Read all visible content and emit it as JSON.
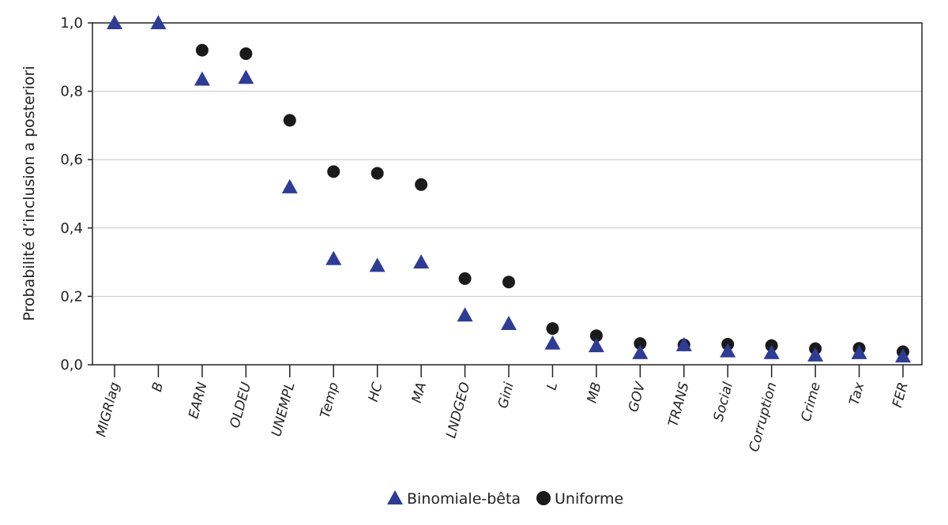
{
  "chart_data": {
    "type": "scatter",
    "ylabel": "Probabilité d’inclusion a posteriori",
    "xlabel": "",
    "ylim": [
      0,
      1.0
    ],
    "yticks": [
      "0,0",
      "0,2",
      "0,4",
      "0,6",
      "0,8",
      "1,0"
    ],
    "grid": "horizontal",
    "legend_position": "bottom-center",
    "categories": [
      "MIGRlag",
      "B",
      "EARN",
      "OLDEU",
      "UNEMPL",
      "Temp",
      "HC",
      "MA",
      "LNDGEO",
      "Gini",
      "L",
      "MB",
      "GOV",
      "TRANS",
      "Social",
      "Corruption",
      "Crime",
      "Tax",
      "FER"
    ],
    "series": [
      {
        "name": "Binomiale-bêta",
        "marker": "triangle",
        "color": "#2e3c96",
        "values": [
          1.0,
          1.0,
          0.835,
          0.84,
          0.52,
          0.31,
          0.29,
          0.3,
          0.145,
          0.12,
          0.063,
          0.055,
          0.035,
          0.058,
          0.04,
          0.035,
          0.028,
          0.035,
          0.025
        ]
      },
      {
        "name": "Uniforme",
        "marker": "circle",
        "color": "#1a1a1a",
        "values": [
          null,
          null,
          0.92,
          0.91,
          0.715,
          0.565,
          0.56,
          0.527,
          0.252,
          0.242,
          0.106,
          0.085,
          0.062,
          0.058,
          0.06,
          0.056,
          0.047,
          0.048,
          0.038
        ]
      }
    ]
  }
}
